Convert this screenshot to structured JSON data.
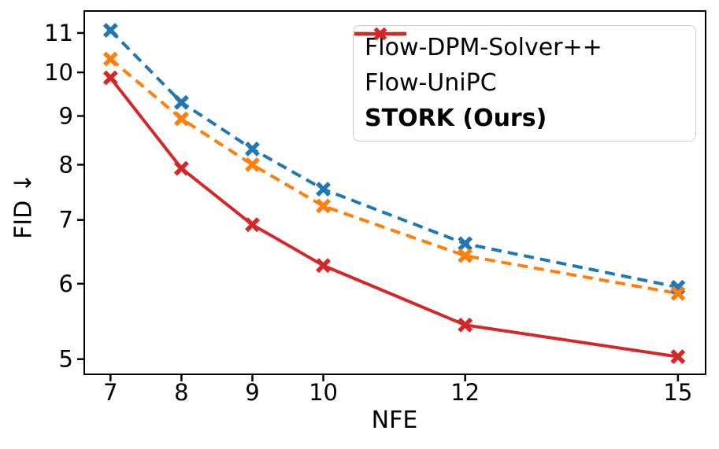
{
  "chart_data": {
    "type": "line",
    "title": "",
    "xlabel": "NFE",
    "ylabel": "FID ↓",
    "xscale": "linear",
    "yscale": "log",
    "xlim": [
      6.63,
      15.39
    ],
    "ylim": [
      4.82,
      11.6
    ],
    "grid": false,
    "legend_position": "upper right",
    "axis_color": "#000000",
    "x": [
      7,
      8,
      9,
      10,
      12,
      15
    ],
    "xtick_labels": [
      "7",
      "8",
      "9",
      "10",
      "12",
      "15"
    ],
    "yticks": [
      5,
      6,
      7,
      8,
      9,
      10,
      11
    ],
    "ytick_labels": [
      "5",
      "6",
      "7",
      "8",
      "9",
      "10",
      "11"
    ],
    "series": [
      {
        "name": "Flow-DPM-Solver++",
        "color": "#1f77b4",
        "linestyle": "dashed",
        "marker": "X",
        "bold_label": false,
        "values": [
          11.07,
          9.3,
          8.31,
          7.54,
          6.61,
          5.95
        ]
      },
      {
        "name": "Flow-UniPC",
        "color": "#ff7f0e",
        "linestyle": "dashed",
        "marker": "X",
        "bold_label": false,
        "values": [
          10.33,
          8.94,
          8.0,
          7.24,
          6.42,
          5.86
        ]
      },
      {
        "name": "STORK (Ours)",
        "color": "#d62728",
        "linestyle": "solid",
        "marker": "X",
        "bold_label": true,
        "values": [
          9.87,
          7.93,
          6.92,
          6.27,
          5.43,
          5.03
        ]
      }
    ]
  }
}
